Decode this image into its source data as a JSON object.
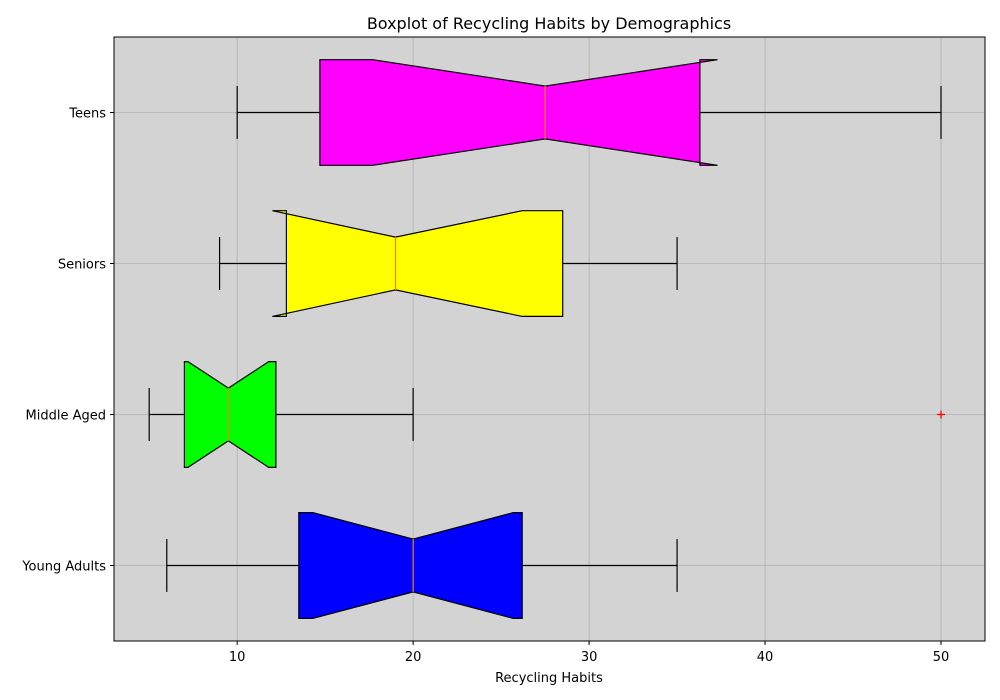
{
  "chart_data": {
    "type": "boxplot",
    "orientation": "horizontal",
    "notched": true,
    "title": "Boxplot of Recycling Habits by Demographics",
    "xlabel": "Recycling Habits",
    "ylabel": "",
    "xlim": [
      3,
      52.5
    ],
    "xticks": [
      10,
      20,
      30,
      40,
      50
    ],
    "grid": true,
    "background": "#d3d3d3",
    "median_color": "#ff7f0e",
    "outlier_color": "#ff0000",
    "categories": [
      "Young Adults",
      "Middle Aged",
      "Seniors",
      "Teens"
    ],
    "series": [
      {
        "category": "Young Adults",
        "color": "#0000ff",
        "whisker_low": 6,
        "q1": 13.5,
        "median": 20,
        "q3": 26.2,
        "whisker_high": 35,
        "notch_low": 14.3,
        "notch_high": 25.7,
        "outliers": []
      },
      {
        "category": "Middle Aged",
        "color": "#00ff00",
        "whisker_low": 5,
        "q1": 7,
        "median": 9.5,
        "q3": 12.2,
        "whisker_high": 20,
        "notch_low": 7.2,
        "notch_high": 11.8,
        "outliers": [
          50
        ]
      },
      {
        "category": "Seniors",
        "color": "#ffff00",
        "whisker_low": 9,
        "q1": 12.8,
        "median": 19,
        "q3": 28.5,
        "whisker_high": 35,
        "notch_low": 12,
        "notch_high": 26.2,
        "outliers": []
      },
      {
        "category": "Teens",
        "color": "#ff00ff",
        "whisker_low": 10,
        "q1": 14.7,
        "median": 27.5,
        "q3": 36.3,
        "whisker_high": 50,
        "notch_low": 17.7,
        "notch_high": 37.3,
        "outliers": []
      }
    ]
  }
}
